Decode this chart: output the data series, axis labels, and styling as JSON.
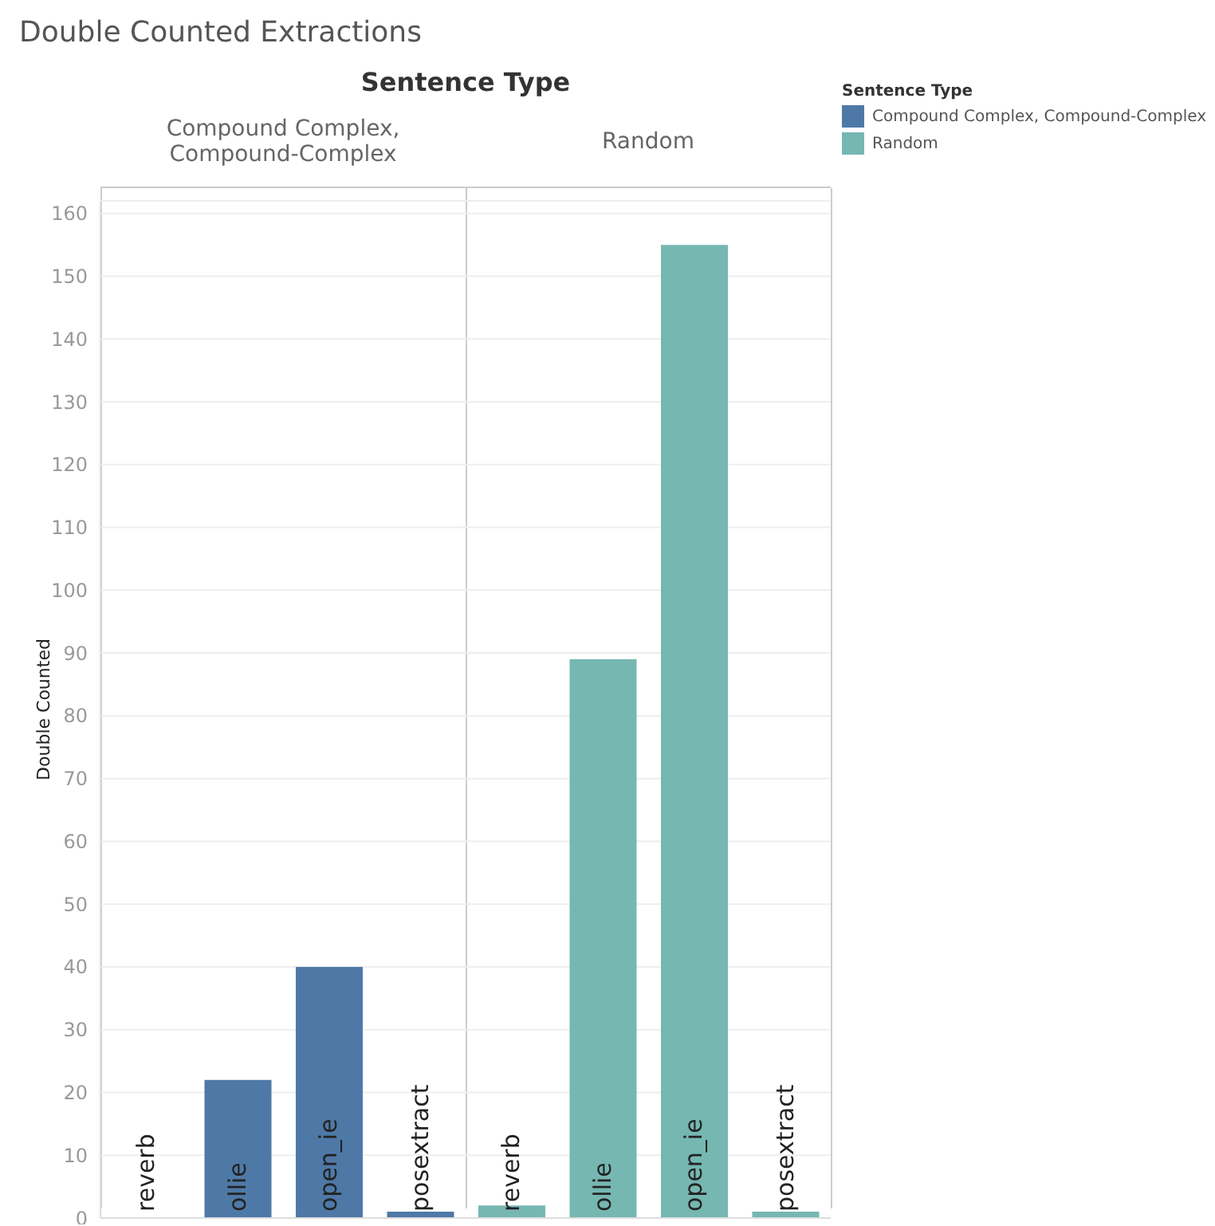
{
  "chart_data": {
    "type": "bar",
    "title": "Double Counted Extractions",
    "ylabel": "Double Counted",
    "legend_title": "Sentence Type",
    "categories": [
      "reverb",
      "ollie",
      "open_ie",
      "posextract",
      "reverb",
      "ollie",
      "open_ie",
      "posextract"
    ],
    "series": [
      {
        "name": "Compound Complex, Compound-Complex",
        "color": "#4e79a7",
        "values": [
          0,
          22,
          40,
          1,
          null,
          null,
          null,
          null
        ]
      },
      {
        "name": "Random",
        "color": "#76b7b2",
        "values": [
          null,
          null,
          null,
          null,
          2,
          89,
          155,
          1
        ]
      }
    ],
    "ylim": [
      0,
      162
    ],
    "yticks": [
      0,
      10,
      20,
      30,
      40,
      50,
      60,
      70,
      80,
      90,
      100,
      110,
      120,
      130,
      140,
      150,
      160
    ],
    "grid": "y",
    "legend": "right"
  }
}
